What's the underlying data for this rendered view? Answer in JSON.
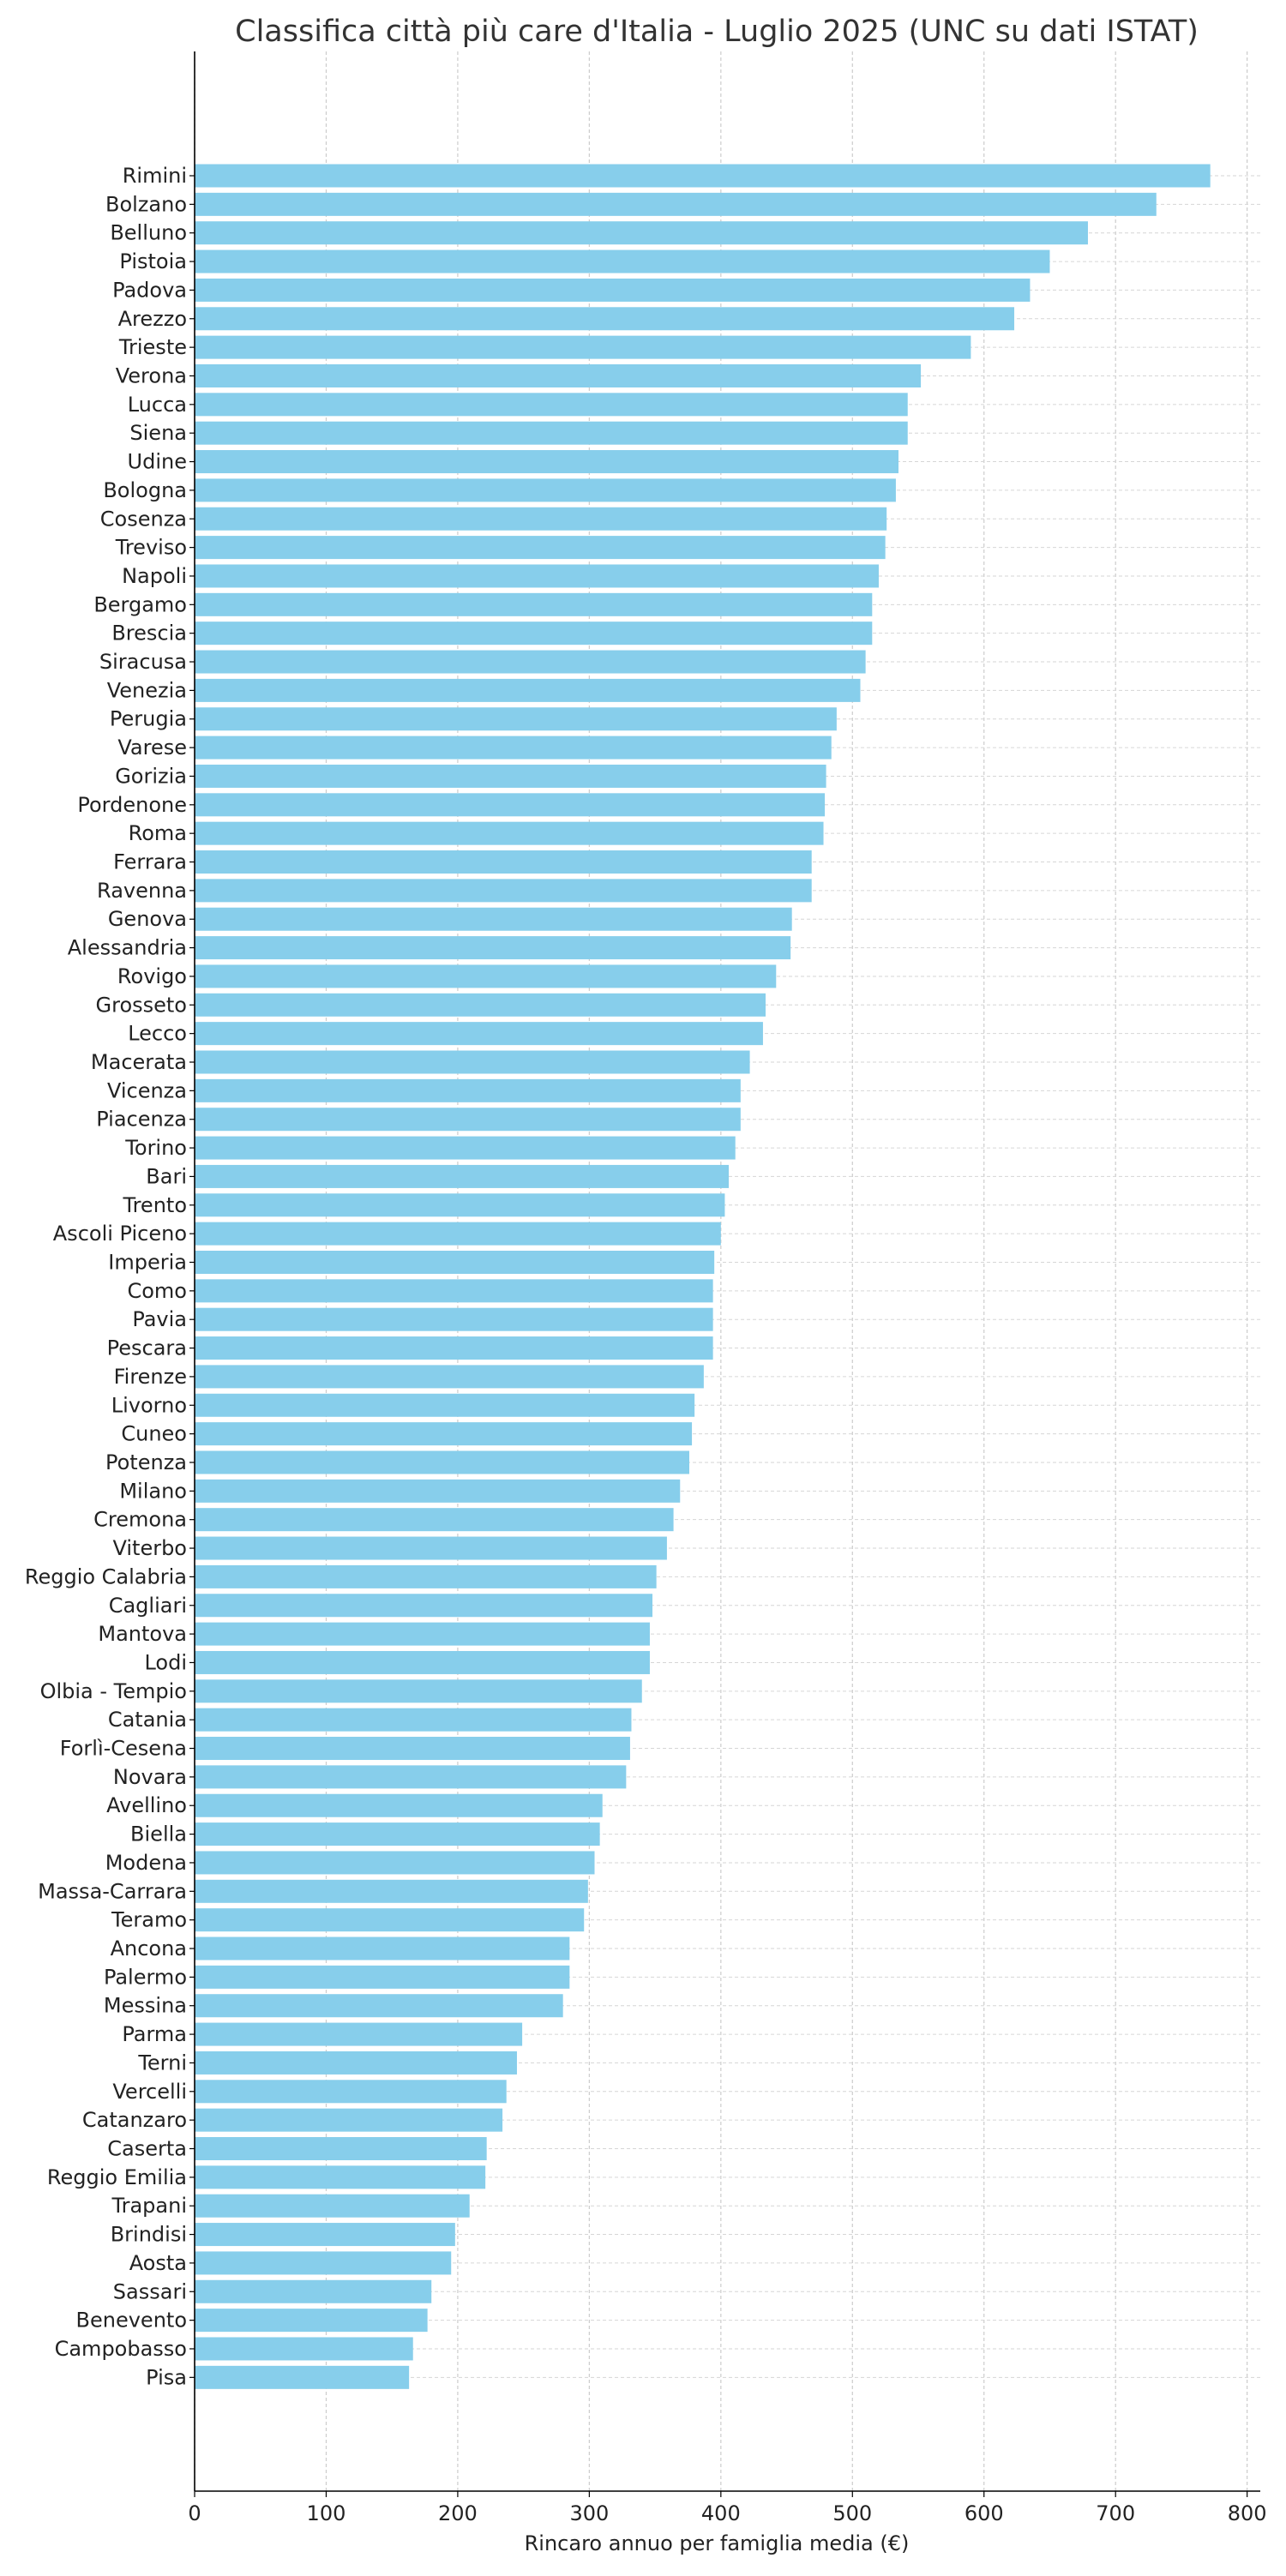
{
  "chart_data": {
    "type": "bar",
    "orientation": "horizontal",
    "title": "Classifica città più care d'Italia - Luglio 2025 (UNC su dati ISTAT)",
    "xlabel": "Rincaro annuo per famiglia media (€)",
    "ylabel": "",
    "xlim": [
      0,
      810
    ],
    "xticks": [
      0,
      100,
      200,
      300,
      400,
      500,
      600,
      700,
      800
    ],
    "grid": true,
    "bar_color": "#87ceeb",
    "categories": [
      "Rimini",
      "Bolzano",
      "Belluno",
      "Pistoia",
      "Padova",
      "Arezzo",
      "Trieste",
      "Verona",
      "Lucca",
      "Siena",
      "Udine",
      "Bologna",
      "Cosenza",
      "Treviso",
      "Napoli",
      "Bergamo",
      "Brescia",
      "Siracusa",
      "Venezia",
      "Perugia",
      "Varese",
      "Gorizia",
      "Pordenone",
      "Roma",
      "Ferrara",
      "Ravenna",
      "Genova",
      "Alessandria",
      "Rovigo",
      "Grosseto",
      "Lecco",
      "Macerata",
      "Vicenza",
      "Piacenza",
      "Torino",
      "Bari",
      "Trento",
      "Ascoli Piceno",
      "Imperia",
      "Como",
      "Pavia",
      "Pescara",
      "Firenze",
      "Livorno",
      "Cuneo",
      "Potenza",
      "Milano",
      "Cremona",
      "Viterbo",
      "Reggio Calabria",
      "Cagliari",
      "Mantova",
      "Lodi",
      "Olbia - Tempio",
      "Catania",
      "Forlì-Cesena",
      "Novara",
      "Avellino",
      "Biella",
      "Modena",
      "Massa-Carrara",
      "Teramo",
      "Ancona",
      "Palermo",
      "Messina",
      "Parma",
      "Terni",
      "Vercelli",
      "Catanzaro",
      "Caserta",
      "Reggio Emilia",
      "Trapani",
      "Brindisi",
      "Aosta",
      "Sassari",
      "Benevento",
      "Campobasso",
      "Pisa"
    ],
    "values": [
      772,
      731,
      679,
      650,
      635,
      623,
      590,
      552,
      542,
      542,
      535,
      533,
      526,
      525,
      520,
      515,
      515,
      510,
      506,
      488,
      484,
      480,
      479,
      478,
      469,
      469,
      454,
      453,
      442,
      434,
      432,
      422,
      415,
      415,
      411,
      406,
      403,
      400,
      395,
      394,
      394,
      394,
      387,
      380,
      378,
      376,
      369,
      364,
      359,
      351,
      348,
      346,
      346,
      340,
      332,
      331,
      328,
      310,
      308,
      304,
      299,
      296,
      285,
      285,
      280,
      249,
      245,
      237,
      234,
      222,
      221,
      209,
      198,
      195,
      180,
      177,
      166,
      163
    ]
  }
}
